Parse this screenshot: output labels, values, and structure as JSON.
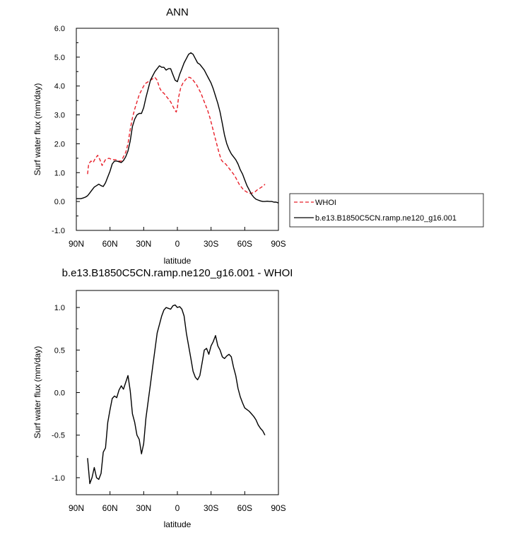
{
  "chart_data": [
    {
      "type": "line",
      "title": "ANN",
      "xlabel": "latitude",
      "ylabel": "Surf water flux (mm/day)",
      "xlim": [
        90,
        -90
      ],
      "ylim": [
        -1.0,
        6.0
      ],
      "x_ticks": [
        90,
        60,
        30,
        0,
        -30,
        -60,
        -90
      ],
      "x_tick_labels": [
        "90N",
        "60N",
        "30N",
        "0",
        "30S",
        "60S",
        "90S"
      ],
      "y_ticks": [
        -1.0,
        0.0,
        1.0,
        2.0,
        3.0,
        4.0,
        5.0,
        6.0
      ],
      "y_tick_labels": [
        "-1.0",
        "0.0",
        "1.0",
        "2.0",
        "3.0",
        "4.0",
        "5.0",
        "6.0"
      ],
      "legend": {
        "placement": "right",
        "entries": [
          {
            "name": "WHOI",
            "color": "#e8202a",
            "dash": "dashed"
          },
          {
            "name": "b.e13.B1850C5CN.ramp.ne120_g16.001",
            "color": "#000000",
            "dash": "solid"
          }
        ]
      },
      "series": [
        {
          "name": "WHOI",
          "color": "#e8202a",
          "dash": "dashed",
          "x": [
            80,
            79,
            77,
            75,
            73,
            71,
            69,
            67,
            64,
            61,
            58,
            55,
            52,
            50,
            48,
            46,
            44,
            42,
            40,
            38,
            36,
            34,
            32,
            30,
            28,
            26,
            24,
            22,
            20,
            18,
            16,
            14,
            12,
            10,
            8,
            6,
            4,
            2,
            1,
            0,
            -1,
            -3,
            -5,
            -7,
            -9,
            -11,
            -13,
            -15,
            -17,
            -19,
            -21,
            -23,
            -25,
            -27,
            -29,
            -31,
            -33,
            -35,
            -37,
            -39,
            -41,
            -43,
            -45,
            -47,
            -49,
            -51,
            -53,
            -55,
            -57,
            -59,
            -61,
            -63,
            -65,
            -67,
            -69,
            -71,
            -73,
            -75,
            -77,
            -78
          ],
          "values": [
            0.95,
            1.3,
            1.4,
            1.35,
            1.5,
            1.6,
            1.45,
            1.25,
            1.45,
            1.5,
            1.45,
            1.45,
            1.4,
            1.4,
            1.55,
            1.7,
            2.0,
            2.5,
            2.9,
            3.2,
            3.45,
            3.7,
            3.85,
            4.0,
            4.1,
            4.15,
            4.2,
            4.25,
            4.3,
            4.2,
            3.95,
            3.8,
            3.75,
            3.65,
            3.55,
            3.45,
            3.3,
            3.15,
            3.1,
            3.25,
            3.6,
            3.95,
            4.1,
            4.2,
            4.3,
            4.3,
            4.25,
            4.15,
            4.05,
            3.9,
            3.75,
            3.55,
            3.35,
            3.15,
            2.9,
            2.6,
            2.3,
            2.0,
            1.7,
            1.45,
            1.35,
            1.3,
            1.2,
            1.1,
            1.0,
            0.9,
            0.75,
            0.6,
            0.5,
            0.4,
            0.35,
            0.3,
            0.28,
            0.3,
            0.33,
            0.4,
            0.45,
            0.5,
            0.55,
            0.6
          ]
        },
        {
          "name": "b.e13.B1850C5CN.ramp.ne120_g16.001",
          "color": "#000000",
          "dash": "solid",
          "x": [
            90,
            86,
            84,
            82,
            80,
            78,
            76,
            74,
            72,
            70,
            68,
            66,
            64,
            62,
            60,
            58,
            56,
            54,
            52,
            50,
            48,
            46,
            44,
            42,
            40,
            38,
            36,
            34,
            32,
            30,
            28,
            26,
            24,
            22,
            20,
            18,
            16,
            14,
            12,
            10,
            8,
            6,
            4,
            2,
            0,
            -2,
            -4,
            -6,
            -8,
            -10,
            -12,
            -14,
            -16,
            -18,
            -20,
            -22,
            -24,
            -26,
            -28,
            -30,
            -32,
            -34,
            -36,
            -38,
            -40,
            -42,
            -44,
            -46,
            -48,
            -50,
            -52,
            -54,
            -56,
            -58,
            -60,
            -62,
            -64,
            -66,
            -68,
            -70,
            -72,
            -74,
            -76,
            -78,
            -80,
            -82,
            -84,
            -86,
            -88,
            -90
          ],
          "values": [
            0.1,
            0.1,
            0.12,
            0.15,
            0.2,
            0.3,
            0.4,
            0.5,
            0.55,
            0.6,
            0.55,
            0.52,
            0.65,
            0.85,
            1.05,
            1.3,
            1.4,
            1.4,
            1.38,
            1.35,
            1.42,
            1.55,
            1.75,
            2.1,
            2.6,
            2.85,
            3.0,
            3.05,
            3.05,
            3.25,
            3.6,
            3.9,
            4.2,
            4.35,
            4.5,
            4.6,
            4.7,
            4.65,
            4.65,
            4.55,
            4.6,
            4.6,
            4.4,
            4.2,
            4.15,
            4.4,
            4.6,
            4.8,
            4.95,
            5.1,
            5.15,
            5.1,
            4.95,
            4.8,
            4.75,
            4.65,
            4.55,
            4.4,
            4.25,
            4.1,
            3.9,
            3.65,
            3.4,
            3.1,
            2.7,
            2.3,
            2.0,
            1.8,
            1.65,
            1.55,
            1.45,
            1.3,
            1.1,
            0.95,
            0.75,
            0.55,
            0.4,
            0.25,
            0.15,
            0.08,
            0.05,
            0.02,
            0.0,
            0.0,
            0.01,
            0.0,
            0.0,
            -0.02,
            -0.02,
            -0.05
          ]
        }
      ]
    },
    {
      "type": "line",
      "title": "b.e13.B1850C5CN.ramp.ne120_g16.001 - WHOI",
      "xlabel": "latitude",
      "ylabel": "Surf water flux (mm/day)",
      "xlim": [
        90,
        -90
      ],
      "ylim": [
        -1.2,
        1.2
      ],
      "x_ticks": [
        90,
        60,
        30,
        0,
        -30,
        -60,
        -90
      ],
      "x_tick_labels": [
        "90N",
        "60N",
        "30N",
        "0",
        "30S",
        "60S",
        "90S"
      ],
      "y_ticks": [
        -1.0,
        -0.5,
        0.0,
        0.5,
        1.0
      ],
      "y_tick_labels": [
        "-1.0",
        "-0.5",
        "0.0",
        "0.5",
        "1.0"
      ],
      "series": [
        {
          "name": "b.e13.B1850C5CN.ramp.ne120_g16.001 - WHOI",
          "color": "#000000",
          "dash": "solid",
          "x": [
            80,
            78,
            76,
            74,
            72,
            70,
            68,
            66,
            64,
            62,
            60,
            58,
            56,
            54,
            52,
            50,
            48,
            46,
            44,
            42,
            40,
            38,
            36,
            34,
            32,
            30,
            28,
            26,
            24,
            22,
            20,
            18,
            16,
            14,
            12,
            10,
            8,
            6,
            4,
            2,
            0,
            -2,
            -4,
            -6,
            -8,
            -10,
            -12,
            -14,
            -16,
            -18,
            -20,
            -22,
            -24,
            -26,
            -28,
            -30,
            -32,
            -34,
            -36,
            -38,
            -40,
            -42,
            -44,
            -46,
            -48,
            -50,
            -52,
            -54,
            -56,
            -58,
            -60,
            -62,
            -64,
            -66,
            -68,
            -70,
            -72,
            -74,
            -76,
            -78
          ],
          "values": [
            -0.77,
            -1.07,
            -1.0,
            -0.88,
            -1.0,
            -1.02,
            -0.95,
            -0.7,
            -0.65,
            -0.35,
            -0.2,
            -0.07,
            -0.04,
            -0.06,
            0.03,
            0.08,
            0.04,
            0.12,
            0.2,
            0.02,
            -0.25,
            -0.35,
            -0.5,
            -0.55,
            -0.72,
            -0.6,
            -0.3,
            -0.1,
            0.1,
            0.3,
            0.5,
            0.7,
            0.8,
            0.9,
            0.97,
            1.0,
            0.99,
            0.98,
            1.02,
            1.03,
            1.0,
            1.01,
            0.98,
            0.9,
            0.7,
            0.55,
            0.4,
            0.25,
            0.18,
            0.15,
            0.2,
            0.35,
            0.5,
            0.52,
            0.45,
            0.55,
            0.6,
            0.67,
            0.55,
            0.5,
            0.42,
            0.4,
            0.43,
            0.45,
            0.42,
            0.3,
            0.2,
            0.05,
            -0.05,
            -0.12,
            -0.18,
            -0.2,
            -0.22,
            -0.25,
            -0.28,
            -0.32,
            -0.38,
            -0.42,
            -0.45,
            -0.5
          ]
        }
      ]
    }
  ]
}
